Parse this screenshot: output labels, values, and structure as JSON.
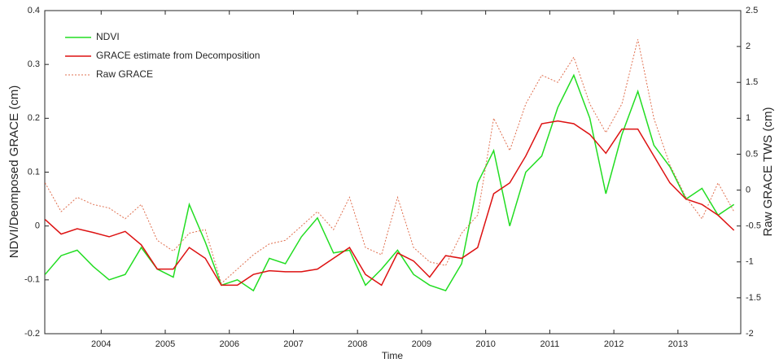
{
  "chart_data": {
    "type": "line",
    "xlabel": "Time",
    "ylabel": "NDVI/Deomposed GRACE (cm)",
    "y2label": "Raw GRACE TWS (cm)",
    "x": [
      2003.125,
      2003.375,
      2003.625,
      2003.875,
      2004.125,
      2004.375,
      2004.625,
      2004.875,
      2005.125,
      2005.375,
      2005.625,
      2005.875,
      2006.125,
      2006.375,
      2006.625,
      2006.875,
      2007.125,
      2007.375,
      2007.625,
      2007.875,
      2008.125,
      2008.375,
      2008.625,
      2008.875,
      2009.125,
      2009.375,
      2009.625,
      2009.875,
      2010.125,
      2010.375,
      2010.625,
      2010.875,
      2011.125,
      2011.375,
      2011.625,
      2011.875,
      2012.125,
      2012.375,
      2012.625,
      2012.875,
      2013.125,
      2013.375,
      2013.625,
      2013.875
    ],
    "xlim": [
      2003.12,
      2013.98
    ],
    "xticks": [
      2004,
      2005,
      2006,
      2007,
      2008,
      2009,
      2010,
      2011,
      2012,
      2013
    ],
    "ylim": [
      -0.2,
      0.4
    ],
    "yticks": [
      -0.2,
      -0.1,
      0,
      0.1,
      0.2,
      0.3,
      0.4
    ],
    "y2lim": [
      -2,
      2.5
    ],
    "y2ticks": [
      -2,
      -1.5,
      -1,
      -0.5,
      0,
      0.5,
      1,
      1.5,
      2,
      2.5
    ],
    "legend": "upper-left",
    "series": [
      {
        "name": "NDVI",
        "color": "#22dd22",
        "style": "solid",
        "axis": "y",
        "values": [
          -0.09,
          -0.055,
          -0.045,
          -0.075,
          -0.1,
          -0.09,
          -0.04,
          -0.08,
          -0.095,
          0.04,
          -0.03,
          -0.11,
          -0.1,
          -0.12,
          -0.06,
          -0.07,
          -0.02,
          0.015,
          -0.05,
          -0.045,
          -0.11,
          -0.08,
          -0.045,
          -0.09,
          -0.11,
          -0.12,
          -0.07,
          0.08,
          0.14,
          0.0,
          0.1,
          0.13,
          0.22,
          0.28,
          0.2,
          0.06,
          0.17,
          0.25,
          0.15,
          0.11,
          0.05,
          0.07,
          0.02,
          0.04
        ]
      },
      {
        "name": "GRACE estimate from Decomposition",
        "color": "#dd1111",
        "style": "solid",
        "axis": "y",
        "values": [
          0.012,
          -0.015,
          -0.005,
          -0.012,
          -0.02,
          -0.01,
          -0.035,
          -0.08,
          -0.08,
          -0.04,
          -0.06,
          -0.11,
          -0.11,
          -0.09,
          -0.083,
          -0.085,
          -0.085,
          -0.08,
          -0.06,
          -0.04,
          -0.09,
          -0.11,
          -0.05,
          -0.065,
          -0.095,
          -0.055,
          -0.06,
          -0.04,
          0.06,
          0.08,
          0.13,
          0.19,
          0.195,
          0.19,
          0.17,
          0.135,
          0.18,
          0.18,
          0.13,
          0.08,
          0.05,
          0.04,
          0.02,
          -0.008
        ]
      },
      {
        "name": "Raw GRACE",
        "color": "#e07050",
        "style": "dotted",
        "axis": "y2",
        "values": [
          0.1,
          -0.3,
          -0.1,
          -0.2,
          -0.25,
          -0.4,
          -0.2,
          -0.7,
          -0.85,
          -0.6,
          -0.55,
          -1.3,
          -1.1,
          -0.9,
          -0.75,
          -0.7,
          -0.5,
          -0.3,
          -0.55,
          -0.1,
          -0.8,
          -0.9,
          -0.1,
          -0.8,
          -1.0,
          -1.05,
          -0.6,
          -0.35,
          1.0,
          0.55,
          1.2,
          1.6,
          1.5,
          1.85,
          1.2,
          0.8,
          1.2,
          2.1,
          1.0,
          0.35,
          -0.1,
          -0.4,
          0.1,
          -0.3
        ]
      }
    ]
  }
}
